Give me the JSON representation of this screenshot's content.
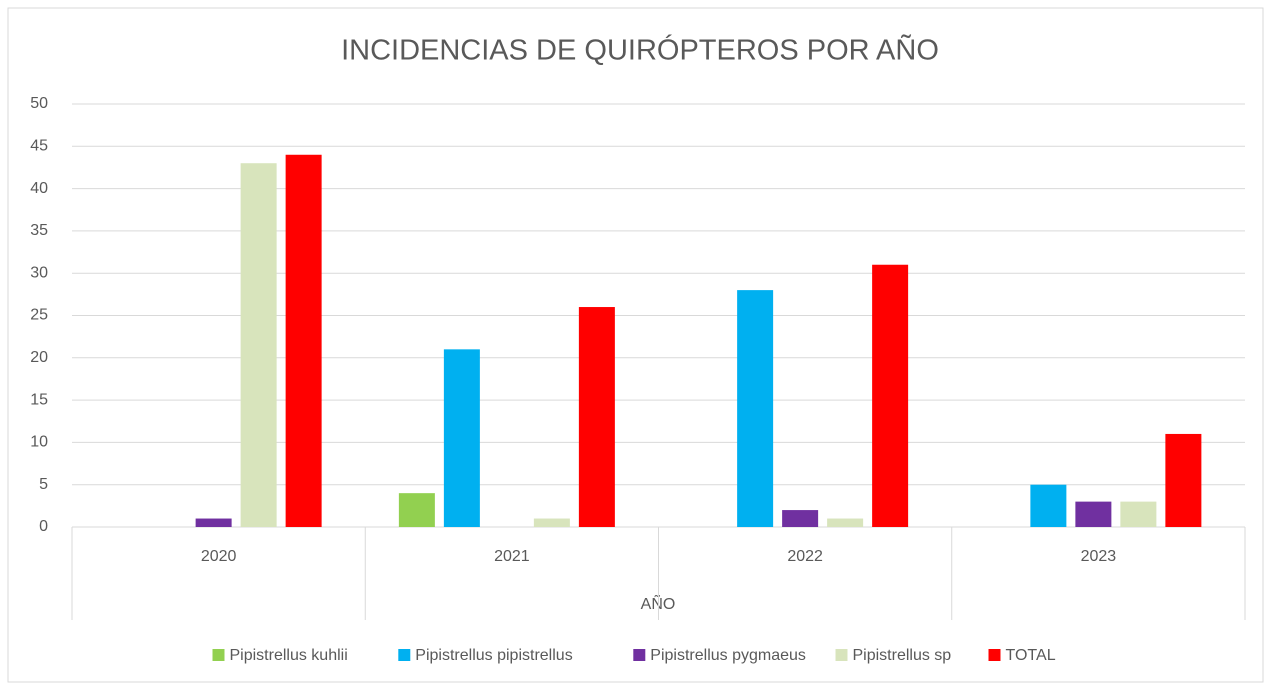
{
  "chart_data": {
    "type": "bar",
    "title": "INCIDENCIAS DE QUIRÓPTEROS POR AÑO",
    "x_label": "AÑO",
    "categories": [
      "2020",
      "2021",
      "2022",
      "2023"
    ],
    "series": [
      {
        "name": "Pipistrellus kuhlii",
        "color": "#92d050",
        "values": [
          0,
          4,
          0,
          0
        ]
      },
      {
        "name": "Pipistrellus pipistrellus",
        "color": "#00b0f0",
        "values": [
          0,
          21,
          28,
          5
        ]
      },
      {
        "name": "Pipistrellus pygmaeus",
        "color": "#7030a0",
        "values": [
          1,
          0,
          2,
          3
        ]
      },
      {
        "name": "Pipistrellus sp",
        "color": "#d8e4bc",
        "values": [
          43,
          1,
          1,
          3
        ]
      },
      {
        "name": "TOTAL",
        "color": "#ff0000",
        "values": [
          44,
          26,
          31,
          11
        ]
      }
    ],
    "ylim": [
      0,
      50
    ],
    "yticks": [
      0,
      5,
      10,
      15,
      20,
      25,
      30,
      35,
      40,
      45,
      50
    ],
    "grid": true,
    "legend": "bottom"
  }
}
